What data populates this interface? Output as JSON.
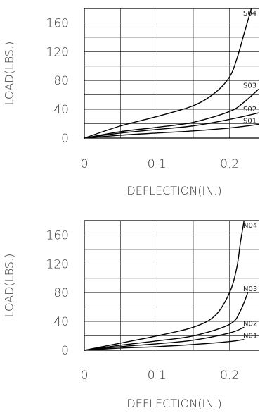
{
  "chart_data": [
    {
      "type": "line",
      "xlabel": "DEFLECTION(IN.)",
      "ylabel": "LOAD(LBS.)",
      "xlim": [
        0,
        0.24
      ],
      "ylim": [
        0,
        180
      ],
      "x_ticks": [
        "0",
        "0.1",
        "0.2"
      ],
      "y_ticks": [
        "160",
        "120",
        "80",
        "40",
        "0"
      ],
      "grid": true,
      "series": [
        {
          "name": "S04",
          "x": [
            0,
            0.05,
            0.1,
            0.15,
            0.18,
            0.2,
            0.21,
            0.22,
            0.23
          ],
          "y": [
            0,
            17,
            30,
            45,
            63,
            85,
            110,
            145,
            180
          ]
        },
        {
          "name": "S03",
          "x": [
            0,
            0.05,
            0.1,
            0.15,
            0.2,
            0.22,
            0.24
          ],
          "y": [
            0,
            9,
            15,
            22,
            37,
            50,
            68
          ]
        },
        {
          "name": "S02",
          "x": [
            0,
            0.05,
            0.1,
            0.15,
            0.2,
            0.24
          ],
          "y": [
            0,
            7,
            12,
            17,
            26,
            35
          ]
        },
        {
          "name": "S01",
          "x": [
            0,
            0.05,
            0.1,
            0.15,
            0.2,
            0.24
          ],
          "y": [
            0,
            4,
            7,
            10,
            14,
            19
          ]
        }
      ]
    },
    {
      "type": "line",
      "xlabel": "DEFLECTION(IN.)",
      "ylabel": "LOAD(LBS.)",
      "xlim": [
        0,
        0.24
      ],
      "ylim": [
        0,
        180
      ],
      "x_ticks": [
        "0",
        "0.1",
        "0.2"
      ],
      "y_ticks": [
        "160",
        "120",
        "80",
        "40",
        "0"
      ],
      "grid": true,
      "series": [
        {
          "name": "N04",
          "x": [
            0,
            0.05,
            0.1,
            0.15,
            0.18,
            0.2,
            0.21,
            0.215,
            0.22
          ],
          "y": [
            0,
            10,
            20,
            32,
            48,
            80,
            115,
            150,
            180
          ]
        },
        {
          "name": "N03",
          "x": [
            0,
            0.05,
            0.1,
            0.15,
            0.2,
            0.215,
            0.225
          ],
          "y": [
            0,
            7,
            13,
            20,
            36,
            55,
            80
          ]
        },
        {
          "name": "N02",
          "x": [
            0,
            0.05,
            0.1,
            0.15,
            0.2,
            0.22
          ],
          "y": [
            0,
            5,
            9,
            14,
            24,
            32
          ]
        },
        {
          "name": "N01",
          "x": [
            0,
            0.05,
            0.1,
            0.15,
            0.2,
            0.22
          ],
          "y": [
            0,
            3,
            5,
            8,
            12,
            15
          ]
        }
      ]
    }
  ]
}
